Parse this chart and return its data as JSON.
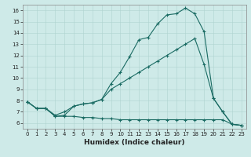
{
  "xlabel": "Humidex (Indice chaleur)",
  "background_color": "#ceeae8",
  "grid_color": "#aed4d0",
  "line_color": "#1a6b63",
  "xlim": [
    -0.5,
    23.5
  ],
  "ylim": [
    5.5,
    16.5
  ],
  "xticks": [
    0,
    1,
    2,
    3,
    4,
    5,
    6,
    7,
    8,
    9,
    10,
    11,
    12,
    13,
    14,
    15,
    16,
    17,
    18,
    19,
    20,
    21,
    22,
    23
  ],
  "yticks": [
    6,
    7,
    8,
    9,
    10,
    11,
    12,
    13,
    14,
    15,
    16
  ],
  "line1_x": [
    0,
    1,
    2,
    3,
    4,
    5,
    6,
    7,
    8,
    9,
    10,
    11,
    12,
    13,
    14,
    15,
    16,
    17,
    18,
    19,
    20,
    21,
    22,
    23
  ],
  "line1_y": [
    7.9,
    7.3,
    7.3,
    6.6,
    6.7,
    7.5,
    7.7,
    7.8,
    8.1,
    9.5,
    10.5,
    11.9,
    13.4,
    13.6,
    14.8,
    15.6,
    15.7,
    16.2,
    15.7,
    14.1,
    8.2,
    7.0,
    5.9,
    5.8
  ],
  "line2_x": [
    0,
    1,
    2,
    3,
    4,
    5,
    6,
    7,
    8,
    9,
    10,
    11,
    12,
    13,
    14,
    15,
    16,
    17,
    18,
    19,
    20,
    21,
    22,
    23
  ],
  "line2_y": [
    7.9,
    7.3,
    7.3,
    6.6,
    6.6,
    6.6,
    6.5,
    6.5,
    6.4,
    6.4,
    6.3,
    6.3,
    6.3,
    6.3,
    6.3,
    6.3,
    6.3,
    6.3,
    6.3,
    6.3,
    6.3,
    6.3,
    5.9,
    5.8
  ],
  "line3_x": [
    0,
    1,
    2,
    3,
    4,
    5,
    6,
    7,
    8,
    9,
    10,
    11,
    12,
    13,
    14,
    15,
    16,
    17,
    18,
    19,
    20,
    21,
    22,
    23
  ],
  "line3_y": [
    7.9,
    7.3,
    7.3,
    6.7,
    7.0,
    7.5,
    7.7,
    7.8,
    8.1,
    9.0,
    9.5,
    10.0,
    10.5,
    11.0,
    11.5,
    12.0,
    12.5,
    13.0,
    13.5,
    11.2,
    8.2,
    7.0,
    5.9,
    5.8
  ],
  "xlabel_fontsize": 6.5,
  "tick_fontsize": 5.0
}
